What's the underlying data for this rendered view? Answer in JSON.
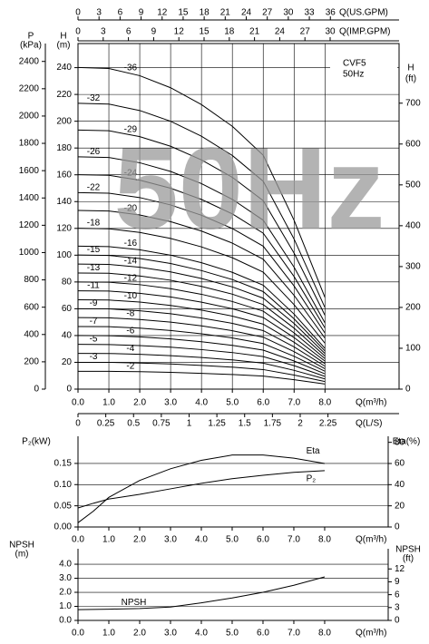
{
  "chart_data": [
    {
      "type": "line",
      "model": "CVF5",
      "frequency": "50Hz",
      "watermark": "50Hz",
      "x_label": "Q(m³/h)",
      "xlim": [
        0,
        10.4
      ],
      "xticks": [
        {
          "value": 0,
          "label": "0.0"
        },
        {
          "value": 1,
          "label": "1.0"
        },
        {
          "value": 2,
          "label": "2.0"
        },
        {
          "value": 3,
          "label": "3.0"
        },
        {
          "value": 4,
          "label": "4.0"
        },
        {
          "value": 5,
          "label": "5.0"
        },
        {
          "value": 6,
          "label": "6.0"
        },
        {
          "value": 7,
          "label": "7.0"
        },
        {
          "value": 8,
          "label": "8.0"
        }
      ],
      "top_axes": [
        {
          "label": "Q(US.GPM)",
          "xlim": [
            0,
            45.8
          ],
          "xticks": [
            0,
            3,
            6,
            9,
            12,
            15,
            18,
            21,
            24,
            27,
            30,
            33,
            36
          ]
        },
        {
          "label": "Q(IMP.GPM)",
          "xlim": [
            0,
            38.2
          ],
          "xticks": [
            0,
            3,
            6,
            9,
            12,
            15,
            18,
            21,
            24,
            27,
            30
          ]
        }
      ],
      "bottom_axis2": {
        "label": "Q(L/S)",
        "xlim": [
          0,
          2.89
        ],
        "xticks": [
          0,
          0.25,
          0.5,
          0.75,
          1,
          1.25,
          1.5,
          1.75,
          2,
          2.25
        ]
      },
      "y_label": "H",
      "y_unit": "(m)",
      "ylim": [
        0,
        258
      ],
      "yticks": [
        0,
        20,
        40,
        60,
        80,
        100,
        120,
        140,
        160,
        180,
        200,
        220,
        240
      ],
      "p_axis": {
        "label": "P",
        "unit": "(kPa)",
        "ylim": [
          0,
          2531
        ],
        "yticks": [
          0,
          200,
          400,
          600,
          800,
          1000,
          1200,
          1400,
          1600,
          1800,
          2000,
          2200,
          2400
        ]
      },
      "ft_axis": {
        "label": "H",
        "unit": "(ft)",
        "ylim": [
          0,
          846
        ],
        "yticks": [
          0,
          100,
          200,
          300,
          400,
          500,
          600,
          700
        ]
      },
      "grid": true,
      "x": [
        0,
        1,
        2,
        3,
        4,
        5,
        6,
        7,
        8
      ],
      "series": [
        {
          "name": "-2",
          "color": "#000",
          "values": [
            13.3,
            13.3,
            13.0,
            12.5,
            11.8,
            10.9,
            9.7,
            7.0,
            3.8
          ]
        },
        {
          "name": "-3",
          "color": "#000",
          "values": [
            20.0,
            20.0,
            19.5,
            18.8,
            17.7,
            16.4,
            14.6,
            10.5,
            5.7
          ]
        },
        {
          "name": "-4",
          "color": "#000",
          "values": [
            26.7,
            26.6,
            26.0,
            25.0,
            23.6,
            21.8,
            19.4,
            14.0,
            7.6
          ]
        },
        {
          "name": "-5",
          "color": "#000",
          "values": [
            33.4,
            33.3,
            32.5,
            31.3,
            29.5,
            27.3,
            24.3,
            17.5,
            9.5
          ]
        },
        {
          "name": "-6",
          "color": "#000",
          "values": [
            40.0,
            39.9,
            39.0,
            37.5,
            35.4,
            32.7,
            29.1,
            21.0,
            11.4
          ]
        },
        {
          "name": "-7",
          "color": "#000",
          "values": [
            46.7,
            46.6,
            45.5,
            43.8,
            41.3,
            38.2,
            34.0,
            24.5,
            13.3
          ]
        },
        {
          "name": "-8",
          "color": "#000",
          "values": [
            53.4,
            53.2,
            52.0,
            50.0,
            47.2,
            43.6,
            38.8,
            28.0,
            15.2
          ]
        },
        {
          "name": "-9",
          "color": "#000",
          "values": [
            60.0,
            59.9,
            58.5,
            56.3,
            53.1,
            49.1,
            43.7,
            31.5,
            17.1
          ]
        },
        {
          "name": "-10",
          "color": "#000",
          "values": [
            66.7,
            66.5,
            65.0,
            62.5,
            59.0,
            54.5,
            48.5,
            35.0,
            19.0
          ]
        },
        {
          "name": "-11",
          "color": "#000",
          "values": [
            73.4,
            73.2,
            71.5,
            68.8,
            64.9,
            60.0,
            53.4,
            38.5,
            20.9
          ]
        },
        {
          "name": "-12",
          "color": "#000",
          "values": [
            80.0,
            79.8,
            78.0,
            75.0,
            70.8,
            65.4,
            58.2,
            42.0,
            22.8
          ]
        },
        {
          "name": "-13",
          "color": "#000",
          "values": [
            86.7,
            86.5,
            84.5,
            81.3,
            76.7,
            70.9,
            63.1,
            45.5,
            24.7
          ]
        },
        {
          "name": "-14",
          "color": "#000",
          "values": [
            93.4,
            93.1,
            91.0,
            87.5,
            82.6,
            76.3,
            67.9,
            49.0,
            26.6
          ]
        },
        {
          "name": "-15",
          "color": "#000",
          "values": [
            100.1,
            99.8,
            97.5,
            93.8,
            88.5,
            81.8,
            72.8,
            52.5,
            28.5
          ]
        },
        {
          "name": "-16",
          "color": "#000",
          "values": [
            106.7,
            106.4,
            104.0,
            100.0,
            94.4,
            87.2,
            77.6,
            56.0,
            30.4
          ]
        },
        {
          "name": "-18",
          "color": "#000",
          "values": [
            120.1,
            119.7,
            117.0,
            112.5,
            106.2,
            98.1,
            87.3,
            63.0,
            34.2
          ]
        },
        {
          "name": "-20",
          "color": "#000",
          "values": [
            133.4,
            133.0,
            130.0,
            125.0,
            118.0,
            109.0,
            97.0,
            70.0,
            38.0
          ]
        },
        {
          "name": "-22",
          "color": "#000",
          "values": [
            146.7,
            146.3,
            143.0,
            137.5,
            129.8,
            119.9,
            106.7,
            77.0,
            41.8
          ]
        },
        {
          "name": "-24",
          "color": "#000",
          "values": [
            160.1,
            159.6,
            156.0,
            150.0,
            141.6,
            130.8,
            116.4,
            84.0,
            45.6
          ]
        },
        {
          "name": "-26",
          "color": "#000",
          "values": [
            173.4,
            172.9,
            169.0,
            162.5,
            153.4,
            141.7,
            126.1,
            91.0,
            49.4
          ]
        },
        {
          "name": "-29",
          "color": "#000",
          "values": [
            193.4,
            192.9,
            188.5,
            181.3,
            171.1,
            158.1,
            140.7,
            101.5,
            55.1
          ]
        },
        {
          "name": "-32",
          "color": "#000",
          "values": [
            213.4,
            212.8,
            208.0,
            200.0,
            188.8,
            174.4,
            155.2,
            112.0,
            60.8
          ]
        },
        {
          "name": "-36",
          "color": "#000",
          "values": [
            240.1,
            239.4,
            234.0,
            225.0,
            212.4,
            196.2,
            174.6,
            126.0,
            68.4
          ]
        }
      ]
    },
    {
      "type": "line",
      "x_label": "Q(m³/h)",
      "xlim": [
        0,
        10.06
      ],
      "xticks": [
        {
          "value": 0,
          "label": "0.0"
        },
        {
          "value": 1,
          "label": "1.0"
        },
        {
          "value": 2,
          "label": "2.0"
        },
        {
          "value": 3,
          "label": "3.0"
        },
        {
          "value": 4,
          "label": "4.0"
        },
        {
          "value": 5,
          "label": "5.0"
        },
        {
          "value": 6,
          "label": "6.0"
        },
        {
          "value": 7,
          "label": "7.0"
        },
        {
          "value": 8,
          "label": "8.0"
        }
      ],
      "y_label": "P₂(kW)",
      "ylim": [
        0,
        0.214
      ],
      "yticks": [
        {
          "value": 0,
          "label": "0.00"
        },
        {
          "value": 0.05,
          "label": "0.05"
        },
        {
          "value": 0.1,
          "label": "0.10"
        },
        {
          "value": 0.15,
          "label": "0.15"
        }
      ],
      "y2_label": "Eta(%)",
      "y2lim": [
        0,
        85.7
      ],
      "y2ticks": [
        0,
        20,
        40,
        60,
        80
      ],
      "grid": true,
      "x": [
        0,
        0.5,
        1,
        2,
        3,
        4,
        5,
        6,
        7,
        8
      ],
      "series": [
        {
          "name": "Eta",
          "color": "#000",
          "axis": "y2",
          "values": [
            4,
            15,
            28,
            44,
            55,
            63,
            68,
            68,
            65,
            60
          ]
        },
        {
          "name": "P₂",
          "color": "#000",
          "values": [
            0.045,
            0.056,
            0.066,
            0.077,
            0.09,
            0.103,
            0.114,
            0.122,
            0.129,
            0.133
          ]
        }
      ]
    },
    {
      "type": "line",
      "x_label": "Q(m³/h)",
      "xlim": [
        0,
        10.06
      ],
      "xticks": [
        {
          "value": 0,
          "label": "0.0"
        },
        {
          "value": 1,
          "label": "1.0"
        },
        {
          "value": 2,
          "label": "2.0"
        },
        {
          "value": 3,
          "label": "3.0"
        },
        {
          "value": 4,
          "label": "4.0"
        },
        {
          "value": 5,
          "label": "5.0"
        },
        {
          "value": 6,
          "label": "6.0"
        },
        {
          "value": 7,
          "label": "7.0"
        },
        {
          "value": 8,
          "label": "8.0"
        }
      ],
      "y_label": "NPSH",
      "y_unit": "(m)",
      "ylim": [
        0,
        5.1
      ],
      "yticks": [
        {
          "value": 0,
          "label": "0.0"
        },
        {
          "value": 1,
          "label": "1.0"
        },
        {
          "value": 2,
          "label": "2.0"
        },
        {
          "value": 3,
          "label": "3.0"
        },
        {
          "value": 4,
          "label": "4.0"
        }
      ],
      "y2_label": "NPSH",
      "y2_unit": "(ft)",
      "y2lim": [
        0,
        16.7
      ],
      "y2ticks": [
        0,
        3,
        6,
        9,
        12
      ],
      "grid": true,
      "x": [
        0,
        1,
        2,
        3,
        4,
        5,
        6,
        7,
        8
      ],
      "series": [
        {
          "name": "NPSH",
          "color": "#000",
          "values": [
            0.77,
            0.8,
            0.85,
            0.95,
            1.25,
            1.6,
            2.0,
            2.5,
            3.1
          ]
        }
      ]
    }
  ]
}
